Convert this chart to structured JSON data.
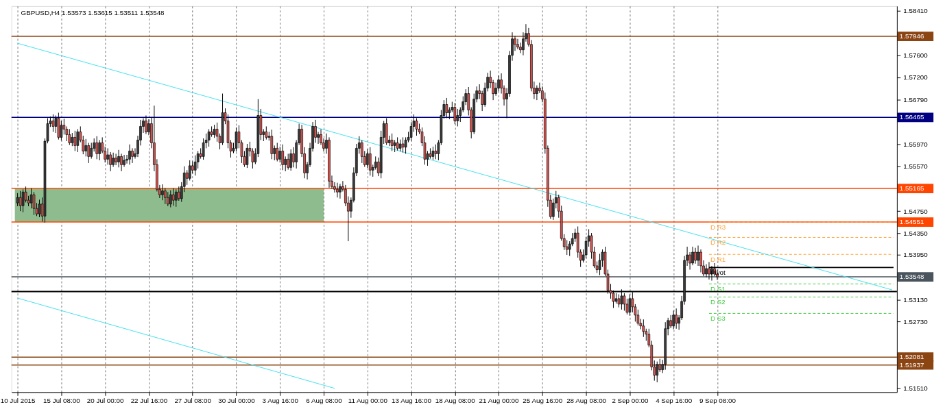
{
  "chart_data": {
    "type": "candlestick",
    "title": "GBPUSD,H4 1.53573 1.53615 1.53511 1.53548",
    "categories": [
      "10 Jul 2015",
      null,
      null,
      null,
      null,
      null,
      null,
      null,
      null,
      null,
      null,
      null,
      null,
      null,
      null,
      null,
      "15 Jul 08:00",
      null,
      null,
      null,
      null,
      null,
      null,
      null,
      null,
      null,
      null,
      null,
      null,
      null,
      null,
      null,
      "20 Jul 00:00",
      null,
      null,
      null,
      null,
      null,
      null,
      null,
      null,
      null,
      null,
      null,
      null,
      null,
      null,
      null,
      "22 Jul 16:00",
      null,
      null,
      null,
      null,
      null,
      null,
      null,
      null,
      null,
      null,
      null,
      null,
      null,
      null,
      null,
      "27 Jul 08:00",
      null,
      null,
      null,
      null,
      null,
      null,
      null,
      null,
      null,
      null,
      null,
      null,
      null,
      null,
      null,
      "30 Jul 00:00",
      null,
      null,
      null,
      null,
      null,
      null,
      null,
      null,
      null,
      null,
      null,
      null,
      null,
      null,
      null,
      "3 Aug 16:00",
      null,
      null,
      null,
      null,
      null,
      null,
      null,
      null,
      null,
      null,
      null,
      null,
      null,
      null,
      null,
      "6 Aug 08:00",
      null,
      null,
      null,
      null,
      null,
      null,
      null,
      null,
      null,
      null,
      null,
      null,
      null,
      null,
      null,
      "11 Aug 00:00",
      null,
      null,
      null,
      null,
      null,
      null,
      null,
      null,
      null,
      null,
      null,
      null,
      null,
      null,
      null,
      "13 Aug 16:00",
      null,
      null,
      null,
      null,
      null,
      null,
      null,
      null,
      null,
      null,
      null,
      null,
      null,
      null,
      null,
      "18 Aug 08:00",
      null,
      null,
      null,
      null,
      null,
      null,
      null,
      null,
      null,
      null,
      null,
      null,
      null,
      null,
      null,
      "21 Aug 00:00",
      null,
      null,
      null,
      null,
      null,
      null,
      null,
      null,
      null,
      null,
      null,
      null,
      null,
      null,
      null,
      "25 Aug 16:00",
      null,
      null,
      null,
      null,
      null,
      null,
      null,
      null,
      null,
      null,
      null,
      null,
      null,
      null,
      null,
      "28 Aug 08:00",
      null,
      null,
      null,
      null,
      null,
      null,
      null,
      null,
      null,
      null,
      null,
      null,
      null,
      null,
      null,
      "2 Sep 00:00",
      null,
      null,
      null,
      null,
      null,
      null,
      null,
      null,
      null,
      null,
      null,
      null,
      null,
      null,
      null,
      "4 Sep 16:00",
      null,
      null,
      null,
      null,
      null,
      null,
      null,
      null,
      null,
      null,
      null,
      null,
      null,
      null,
      null,
      "9 Sep 08:00",
      null,
      null,
      null,
      null,
      null,
      null,
      null,
      null,
      null,
      null,
      null,
      null,
      null,
      null,
      null,
      null,
      null,
      null,
      null,
      null,
      null,
      null,
      null,
      null,
      null,
      null,
      null,
      null,
      null,
      null,
      null,
      null,
      null,
      null,
      null,
      null,
      null,
      null,
      null,
      null,
      null,
      null,
      null,
      null,
      null,
      null,
      null,
      null,
      null,
      null,
      null,
      null,
      null,
      null,
      null,
      null,
      null,
      null,
      null,
      null,
      null,
      null,
      null,
      null
    ],
    "ohlc": [
      [
        1.549,
        1.5508,
        1.5484,
        1.55
      ],
      [
        1.55,
        1.5512,
        1.5475,
        1.5485
      ],
      [
        1.5485,
        1.5515,
        1.5473,
        1.551
      ],
      [
        1.551,
        1.552,
        1.5491,
        1.5495
      ],
      [
        1.5495,
        1.5503,
        1.5484,
        1.549
      ],
      [
        1.549,
        1.5517,
        1.548,
        1.5505
      ],
      [
        1.5505,
        1.551,
        1.5468,
        1.548
      ],
      [
        1.548,
        1.549,
        1.5466,
        1.547
      ],
      [
        1.547,
        1.5496,
        1.5464,
        1.5488
      ],
      [
        1.5488,
        1.55,
        1.5456,
        1.5466
      ],
      [
        1.5466,
        1.5608,
        1.5454,
        1.5603
      ],
      [
        1.5603,
        1.5645,
        1.5599,
        1.5635
      ],
      [
        1.5635,
        1.5648,
        1.5629,
        1.564
      ],
      [
        1.564,
        1.5652,
        1.562,
        1.563
      ],
      [
        1.563,
        1.565,
        1.5618,
        1.5645
      ],
      [
        1.5645,
        1.5655,
        1.5606,
        1.561
      ],
      [
        1.561,
        1.564,
        1.5604,
        1.5632
      ],
      [
        1.5632,
        1.5644,
        1.5615,
        1.5625
      ],
      [
        1.5625,
        1.563,
        1.5603,
        1.5615
      ],
      [
        1.5615,
        1.5625,
        1.5596,
        1.56
      ],
      [
        1.56,
        1.5618,
        1.5594,
        1.561
      ],
      [
        1.561,
        1.5622,
        1.5585,
        1.5595
      ],
      [
        1.5595,
        1.5625,
        1.5583,
        1.562
      ],
      [
        1.562,
        1.563,
        1.5601,
        1.5605
      ],
      [
        1.5605,
        1.5613,
        1.5579,
        1.5585
      ],
      [
        1.5585,
        1.5607,
        1.5575,
        1.5595
      ],
      [
        1.5595,
        1.56,
        1.5563,
        1.5575
      ],
      [
        1.5575,
        1.56,
        1.5571,
        1.559
      ],
      [
        1.559,
        1.5608,
        1.5584,
        1.56
      ],
      [
        1.56,
        1.5612,
        1.557,
        1.558
      ],
      [
        1.558,
        1.5605,
        1.5568,
        1.56
      ],
      [
        1.56,
        1.561,
        1.5581,
        1.5585
      ],
      [
        1.5585,
        1.5593,
        1.5564,
        1.557
      ],
      [
        1.557,
        1.559,
        1.556,
        1.5578
      ],
      [
        1.5578,
        1.5583,
        1.5548,
        1.556
      ],
      [
        1.556,
        1.5582,
        1.5556,
        1.5572
      ],
      [
        1.5572,
        1.558,
        1.5559,
        1.5565
      ],
      [
        1.5565,
        1.5587,
        1.5555,
        1.5575
      ],
      [
        1.5575,
        1.558,
        1.5548,
        1.556
      ],
      [
        1.556,
        1.5578,
        1.5556,
        1.5568
      ],
      [
        1.5568,
        1.5578,
        1.5562,
        1.557
      ],
      [
        1.557,
        1.5597,
        1.556,
        1.5585
      ],
      [
        1.5585,
        1.559,
        1.5563,
        1.5575
      ],
      [
        1.5575,
        1.559,
        1.5571,
        1.558
      ],
      [
        1.558,
        1.5613,
        1.5574,
        1.5605
      ],
      [
        1.5605,
        1.5642,
        1.5595,
        1.563
      ],
      [
        1.563,
        1.5645,
        1.5618,
        1.564
      ],
      [
        1.564,
        1.565,
        1.5616,
        1.562
      ],
      [
        1.562,
        1.5643,
        1.5614,
        1.5635
      ],
      [
        1.5635,
        1.5647,
        1.559,
        1.56
      ],
      [
        1.56,
        1.5668,
        1.5548,
        1.556
      ],
      [
        1.556,
        1.557,
        1.5511,
        1.5515
      ],
      [
        1.5515,
        1.5523,
        1.5499,
        1.5505
      ],
      [
        1.5505,
        1.5524,
        1.5495,
        1.5512
      ],
      [
        1.5512,
        1.5517,
        1.5488,
        1.55
      ],
      [
        1.55,
        1.551,
        1.5484,
        1.5488
      ],
      [
        1.5488,
        1.5513,
        1.5482,
        1.5505
      ],
      [
        1.5505,
        1.5517,
        1.5485,
        1.5495
      ],
      [
        1.5495,
        1.5515,
        1.5483,
        1.551
      ],
      [
        1.551,
        1.552,
        1.5494,
        1.5498
      ],
      [
        1.5498,
        1.5528,
        1.5492,
        1.552
      ],
      [
        1.552,
        1.5557,
        1.551,
        1.5545
      ],
      [
        1.5545,
        1.555,
        1.5523,
        1.5535
      ],
      [
        1.5535,
        1.5568,
        1.5531,
        1.5558
      ],
      [
        1.5558,
        1.5566,
        1.5544,
        1.555
      ],
      [
        1.555,
        1.5577,
        1.554,
        1.5565
      ],
      [
        1.5565,
        1.5585,
        1.5553,
        1.558
      ],
      [
        1.558,
        1.559,
        1.5571,
        1.5575
      ],
      [
        1.5575,
        1.5608,
        1.5569,
        1.56
      ],
      [
        1.56,
        1.5617,
        1.559,
        1.5605
      ],
      [
        1.5605,
        1.5625,
        1.5593,
        1.562
      ],
      [
        1.562,
        1.563,
        1.5611,
        1.5615
      ],
      [
        1.5615,
        1.5633,
        1.5609,
        1.5625
      ],
      [
        1.5625,
        1.5637,
        1.5602,
        1.5612
      ],
      [
        1.5612,
        1.5617,
        1.5588,
        1.56
      ],
      [
        1.56,
        1.569,
        1.5596,
        1.5655
      ],
      [
        1.5655,
        1.5663,
        1.5634,
        1.564
      ],
      [
        1.564,
        1.5652,
        1.559,
        1.56
      ],
      [
        1.56,
        1.5605,
        1.5573,
        1.5585
      ],
      [
        1.5585,
        1.56,
        1.5581,
        1.559
      ],
      [
        1.559,
        1.5628,
        1.5584,
        1.562
      ],
      [
        1.562,
        1.5632,
        1.559,
        1.56
      ],
      [
        1.56,
        1.5605,
        1.5563,
        1.5575
      ],
      [
        1.5575,
        1.5585,
        1.5556,
        1.556
      ],
      [
        1.556,
        1.5598,
        1.5554,
        1.559
      ],
      [
        1.559,
        1.5602,
        1.5575,
        1.5585
      ],
      [
        1.5585,
        1.559,
        1.5553,
        1.5565
      ],
      [
        1.5565,
        1.559,
        1.5561,
        1.558
      ],
      [
        1.558,
        1.568,
        1.5574,
        1.565
      ],
      [
        1.565,
        1.5662,
        1.5605,
        1.5615
      ],
      [
        1.5615,
        1.5625,
        1.5603,
        1.562
      ],
      [
        1.562,
        1.563,
        1.5606,
        1.561
      ],
      [
        1.561,
        1.562,
        1.5604,
        1.5612
      ],
      [
        1.5612,
        1.5624,
        1.557,
        1.558
      ],
      [
        1.558,
        1.5595,
        1.5568,
        1.559
      ],
      [
        1.559,
        1.56,
        1.5566,
        1.557
      ],
      [
        1.557,
        1.5593,
        1.5564,
        1.5585
      ],
      [
        1.5585,
        1.5597,
        1.555,
        1.556
      ],
      [
        1.556,
        1.5575,
        1.5548,
        1.557
      ],
      [
        1.557,
        1.558,
        1.5551,
        1.5555
      ],
      [
        1.5555,
        1.5588,
        1.5549,
        1.558
      ],
      [
        1.558,
        1.5592,
        1.5555,
        1.5565
      ],
      [
        1.5565,
        1.5605,
        1.5553,
        1.56
      ],
      [
        1.56,
        1.5635,
        1.5596,
        1.5625
      ],
      [
        1.5625,
        1.5633,
        1.5574,
        1.558
      ],
      [
        1.558,
        1.5592,
        1.5535,
        1.5545
      ],
      [
        1.5545,
        1.5565,
        1.5533,
        1.556
      ],
      [
        1.556,
        1.56,
        1.5556,
        1.559
      ],
      [
        1.559,
        1.5638,
        1.5584,
        1.563
      ],
      [
        1.563,
        1.5642,
        1.56,
        1.561
      ],
      [
        1.561,
        1.562,
        1.5598,
        1.5615
      ],
      [
        1.5615,
        1.5625,
        1.5596,
        1.56
      ],
      [
        1.56,
        1.5608,
        1.5584,
        1.559
      ],
      [
        1.559,
        1.5617,
        1.558,
        1.5605
      ],
      [
        1.5605,
        1.561,
        1.5518,
        1.553
      ],
      [
        1.553,
        1.554,
        1.5516,
        1.552
      ],
      [
        1.552,
        1.5528,
        1.5509,
        1.5515
      ],
      [
        1.5515,
        1.5527,
        1.55,
        1.551
      ],
      [
        1.551,
        1.5525,
        1.5498,
        1.552
      ],
      [
        1.552,
        1.553,
        1.5511,
        1.5515
      ],
      [
        1.5515,
        1.5523,
        1.5484,
        1.549
      ],
      [
        1.549,
        1.5502,
        1.542,
        1.5475
      ],
      [
        1.5475,
        1.55,
        1.5463,
        1.5495
      ],
      [
        1.5495,
        1.5555,
        1.5491,
        1.5545
      ],
      [
        1.5545,
        1.5598,
        1.5539,
        1.559
      ],
      [
        1.559,
        1.5612,
        1.558,
        1.56
      ],
      [
        1.56,
        1.5605,
        1.5563,
        1.5575
      ],
      [
        1.5575,
        1.5585,
        1.5556,
        1.556
      ],
      [
        1.556,
        1.5588,
        1.5554,
        1.558
      ],
      [
        1.558,
        1.5592,
        1.554,
        1.555
      ],
      [
        1.555,
        1.556,
        1.5538,
        1.5555
      ],
      [
        1.5555,
        1.5575,
        1.5551,
        1.5565
      ],
      [
        1.5565,
        1.5573,
        1.5539,
        1.5545
      ],
      [
        1.5545,
        1.5622,
        1.5535,
        1.561
      ],
      [
        1.561,
        1.564,
        1.5598,
        1.5635
      ],
      [
        1.5635,
        1.5645,
        1.5596,
        1.56
      ],
      [
        1.56,
        1.5613,
        1.5594,
        1.5605
      ],
      [
        1.5605,
        1.5617,
        1.5585,
        1.5595
      ],
      [
        1.5595,
        1.5605,
        1.5583,
        1.56
      ],
      [
        1.56,
        1.561,
        1.5586,
        1.559
      ],
      [
        1.559,
        1.5606,
        1.5584,
        1.5598
      ],
      [
        1.5598,
        1.561,
        1.5582,
        1.5592
      ],
      [
        1.5592,
        1.561,
        1.558,
        1.5605
      ],
      [
        1.5605,
        1.562,
        1.5601,
        1.561
      ],
      [
        1.561,
        1.5638,
        1.5604,
        1.563
      ],
      [
        1.563,
        1.5652,
        1.562,
        1.564
      ],
      [
        1.564,
        1.5645,
        1.5613,
        1.5625
      ],
      [
        1.5625,
        1.5635,
        1.5616,
        1.562
      ],
      [
        1.562,
        1.5628,
        1.5594,
        1.56
      ],
      [
        1.56,
        1.5612,
        1.556,
        1.557
      ],
      [
        1.557,
        1.5585,
        1.5558,
        1.558
      ],
      [
        1.558,
        1.559,
        1.5571,
        1.5575
      ],
      [
        1.5575,
        1.5593,
        1.5569,
        1.5585
      ],
      [
        1.5585,
        1.5597,
        1.557,
        1.558
      ],
      [
        1.558,
        1.5605,
        1.5568,
        1.56
      ],
      [
        1.56,
        1.566,
        1.5596,
        1.565
      ],
      [
        1.565,
        1.5678,
        1.5644,
        1.567
      ],
      [
        1.567,
        1.5682,
        1.5645,
        1.5655
      ],
      [
        1.5655,
        1.5665,
        1.5643,
        1.566
      ],
      [
        1.566,
        1.5675,
        1.5656,
        1.5665
      ],
      [
        1.5665,
        1.5673,
        1.5634,
        1.564
      ],
      [
        1.564,
        1.5662,
        1.563,
        1.565
      ],
      [
        1.565,
        1.5665,
        1.5638,
        1.566
      ],
      [
        1.566,
        1.5685,
        1.5656,
        1.5675
      ],
      [
        1.5675,
        1.5698,
        1.5669,
        1.569
      ],
      [
        1.569,
        1.5702,
        1.565,
        1.566
      ],
      [
        1.566,
        1.5665,
        1.5608,
        1.562
      ],
      [
        1.562,
        1.569,
        1.5616,
        1.568
      ],
      [
        1.568,
        1.5703,
        1.5674,
        1.5695
      ],
      [
        1.5695,
        1.5707,
        1.568,
        1.569
      ],
      [
        1.569,
        1.5695,
        1.5658,
        1.567
      ],
      [
        1.567,
        1.571,
        1.5666,
        1.57
      ],
      [
        1.57,
        1.5728,
        1.5694,
        1.572
      ],
      [
        1.572,
        1.5732,
        1.57,
        1.571
      ],
      [
        1.571,
        1.5715,
        1.5678,
        1.569
      ],
      [
        1.569,
        1.571,
        1.5686,
        1.57
      ],
      [
        1.57,
        1.5723,
        1.5694,
        1.5715
      ],
      [
        1.5715,
        1.5727,
        1.569,
        1.57
      ],
      [
        1.57,
        1.5705,
        1.5668,
        1.568
      ],
      [
        1.568,
        1.57,
        1.5645,
        1.569
      ],
      [
        1.569,
        1.5768,
        1.5684,
        1.576
      ],
      [
        1.576,
        1.5802,
        1.575,
        1.579
      ],
      [
        1.579,
        1.5795,
        1.5768,
        1.578
      ],
      [
        1.578,
        1.579,
        1.5771,
        1.5775
      ],
      [
        1.5775,
        1.5783,
        1.5764,
        1.577
      ],
      [
        1.577,
        1.5802,
        1.576,
        1.579
      ],
      [
        1.579,
        1.5817,
        1.5785,
        1.58
      ],
      [
        1.58,
        1.581,
        1.5776,
        1.578
      ],
      [
        1.578,
        1.5788,
        1.5694,
        1.57
      ],
      [
        1.57,
        1.5712,
        1.568,
        1.569
      ],
      [
        1.569,
        1.5705,
        1.5678,
        1.57
      ],
      [
        1.57,
        1.571,
        1.5691,
        1.5695
      ],
      [
        1.5695,
        1.5703,
        1.5674,
        1.568
      ],
      [
        1.568,
        1.5692,
        1.558,
        1.559
      ],
      [
        1.559,
        1.5595,
        1.5483,
        1.5495
      ],
      [
        1.5495,
        1.5505,
        1.5461,
        1.5465
      ],
      [
        1.5465,
        1.5498,
        1.5459,
        1.549
      ],
      [
        1.549,
        1.5512,
        1.548,
        1.55
      ],
      [
        1.55,
        1.5505,
        1.5463,
        1.5475
      ],
      [
        1.5475,
        1.5485,
        1.5421,
        1.5425
      ],
      [
        1.5425,
        1.5433,
        1.5404,
        1.541
      ],
      [
        1.541,
        1.5422,
        1.5395,
        1.5405
      ],
      [
        1.5405,
        1.542,
        1.5393,
        1.5415
      ],
      [
        1.5415,
        1.5435,
        1.5411,
        1.5425
      ],
      [
        1.5425,
        1.5443,
        1.5419,
        1.5435
      ],
      [
        1.5435,
        1.5447,
        1.539,
        1.54
      ],
      [
        1.54,
        1.5405,
        1.5373,
        1.5385
      ],
      [
        1.5385,
        1.5405,
        1.5381,
        1.5395
      ],
      [
        1.5395,
        1.5428,
        1.5389,
        1.542
      ],
      [
        1.542,
        1.5442,
        1.541,
        1.543
      ],
      [
        1.543,
        1.5435,
        1.5388,
        1.54
      ],
      [
        1.54,
        1.541,
        1.5371,
        1.5375
      ],
      [
        1.5375,
        1.5383,
        1.5362,
        1.5368
      ],
      [
        1.5368,
        1.5397,
        1.5358,
        1.5385
      ],
      [
        1.5385,
        1.5405,
        1.5373,
        1.54
      ],
      [
        1.54,
        1.541,
        1.5356,
        1.536
      ],
      [
        1.536,
        1.5368,
        1.5324,
        1.533
      ],
      [
        1.533,
        1.5342,
        1.5315,
        1.5325
      ],
      [
        1.5325,
        1.533,
        1.5298,
        1.531
      ],
      [
        1.531,
        1.5325,
        1.5306,
        1.5315
      ],
      [
        1.5315,
        1.5323,
        1.5299,
        1.5305
      ],
      [
        1.5305,
        1.5332,
        1.5295,
        1.532
      ],
      [
        1.532,
        1.5325,
        1.5293,
        1.5305
      ],
      [
        1.5305,
        1.5315,
        1.5286,
        1.529
      ],
      [
        1.529,
        1.5323,
        1.5284,
        1.5315
      ],
      [
        1.5315,
        1.5327,
        1.529,
        1.53
      ],
      [
        1.53,
        1.5305,
        1.5273,
        1.5285
      ],
      [
        1.5285,
        1.5295,
        1.5266,
        1.527
      ],
      [
        1.527,
        1.5278,
        1.5259,
        1.5265
      ],
      [
        1.5265,
        1.5277,
        1.5245,
        1.5255
      ],
      [
        1.5255,
        1.526,
        1.5238,
        1.525
      ],
      [
        1.525,
        1.526,
        1.5226,
        1.523
      ],
      [
        1.523,
        1.5238,
        1.5184,
        1.519
      ],
      [
        1.519,
        1.5202,
        1.5165,
        1.5175
      ],
      [
        1.5175,
        1.52,
        1.5162,
        1.5195
      ],
      [
        1.5195,
        1.5205,
        1.5181,
        1.5185
      ],
      [
        1.5185,
        1.5203,
        1.5179,
        1.5195
      ],
      [
        1.5195,
        1.5272,
        1.5185,
        1.526
      ],
      [
        1.526,
        1.528,
        1.5248,
        1.5275
      ],
      [
        1.5275,
        1.5285,
        1.5261,
        1.5265
      ],
      [
        1.5265,
        1.5293,
        1.5259,
        1.5285
      ],
      [
        1.5285,
        1.5297,
        1.526,
        1.527
      ],
      [
        1.527,
        1.5285,
        1.5258,
        1.528
      ],
      [
        1.528,
        1.532,
        1.5276,
        1.531
      ],
      [
        1.531,
        1.5393,
        1.5304,
        1.5385
      ],
      [
        1.5385,
        1.541,
        1.5375,
        1.5395
      ],
      [
        1.5395,
        1.54,
        1.5368,
        1.538
      ],
      [
        1.538,
        1.541,
        1.5376,
        1.54
      ],
      [
        1.54,
        1.5408,
        1.5379,
        1.5385
      ],
      [
        1.5385,
        1.5412,
        1.5375,
        1.54
      ],
      [
        1.54,
        1.5405,
        1.5363,
        1.5375
      ],
      [
        1.5375,
        1.5385,
        1.5356,
        1.536
      ],
      [
        1.536,
        1.5378,
        1.5354,
        1.537
      ],
      [
        1.537,
        1.5382,
        1.535,
        1.536
      ],
      [
        1.536,
        1.5375,
        1.5348,
        1.537
      ],
      [
        1.537,
        1.538,
        1.5356,
        1.536
      ],
      [
        1.536,
        1.5368,
        1.5349,
        1.5355
      ],
      null,
      null,
      null,
      null,
      null,
      null,
      null,
      null,
      null,
      null,
      null,
      null,
      null,
      null,
      null,
      null,
      null,
      null,
      null,
      null,
      null,
      null,
      null,
      null,
      null,
      null,
      null,
      null,
      null,
      null,
      null,
      null,
      null,
      null,
      null,
      null,
      null,
      null,
      null,
      null,
      null,
      null,
      null,
      null,
      null,
      null,
      null,
      null,
      null,
      null,
      null,
      null,
      null,
      null,
      null,
      null,
      null,
      null,
      null,
      null,
      null,
      null,
      null,
      null
    ],
    "series": [
      {
        "type": "line",
        "color": "#40e0f0",
        "values": [
          1.5782,
          null,
          null,
          null,
          null,
          null,
          null,
          null,
          null,
          null,
          null,
          null,
          null,
          null,
          null,
          null,
          null,
          null,
          null,
          null,
          null,
          null,
          null,
          null,
          null,
          null,
          null,
          null,
          null,
          null,
          null,
          null,
          null,
          null,
          null,
          null,
          null,
          null,
          null,
          null,
          null,
          null,
          null,
          null,
          null,
          null,
          null,
          null,
          null,
          null,
          null,
          null,
          null,
          null,
          null,
          null,
          null,
          null,
          null,
          null,
          null,
          null,
          null,
          null,
          null,
          null,
          null,
          null,
          null,
          null,
          null,
          null,
          null,
          null,
          null,
          null,
          null,
          null,
          null,
          null,
          null,
          null,
          null,
          null,
          null,
          null,
          null,
          null,
          null,
          null,
          null,
          null,
          null,
          null,
          null,
          null,
          null,
          null,
          null,
          null,
          null,
          null,
          null,
          null,
          null,
          null,
          null,
          null,
          null,
          null,
          null,
          null,
          null,
          null,
          null,
          null,
          null,
          null,
          null,
          null,
          null,
          null,
          null,
          null,
          null,
          null,
          null,
          null,
          null,
          null,
          null,
          null,
          null,
          null,
          null,
          null,
          null,
          null,
          null,
          null,
          null,
          null,
          null,
          null,
          null,
          null,
          null,
          null,
          null,
          null,
          null,
          null,
          null,
          null,
          null,
          null,
          null,
          null,
          null,
          null,
          null,
          null,
          null,
          null,
          null,
          null,
          null,
          null,
          null,
          null,
          null,
          null,
          null,
          null,
          null,
          null,
          null,
          null,
          null,
          null,
          null,
          null,
          null,
          null,
          null,
          null,
          null,
          null,
          null,
          null,
          null,
          null,
          null,
          null,
          null,
          null,
          null,
          null,
          null,
          null,
          null,
          null,
          null,
          null,
          null,
          null,
          null,
          null,
          null,
          null,
          null,
          null,
          null,
          null,
          null,
          null,
          null,
          null,
          null,
          null,
          null,
          null,
          null,
          null,
          null,
          null,
          null,
          null,
          null,
          null,
          null,
          null,
          null,
          null,
          null,
          null,
          null,
          null,
          null,
          null,
          null,
          null,
          null,
          null,
          null,
          null,
          null,
          null,
          null,
          null,
          null,
          null,
          null,
          null,
          null,
          null,
          null,
          null,
          null,
          null,
          null,
          null,
          null,
          null,
          null,
          null,
          null,
          null,
          null,
          null,
          null,
          null,
          null,
          null,
          null,
          null,
          null,
          null,
          null,
          null,
          null,
          null,
          null,
          null,
          null,
          null,
          null,
          null,
          null,
          null,
          null,
          null,
          null,
          null,
          null,
          null,
          null,
          null,
          null,
          null,
          null,
          null,
          null,
          null,
          null,
          null,
          null,
          null,
          null,
          null,
          null,
          null,
          null,
          null,
          null,
          null,
          null,
          null,
          null,
          null,
          1.5331
        ]
      },
      {
        "type": "line",
        "color": "#40e0f0",
        "values": [
          1.5316,
          null,
          null,
          null,
          null,
          null,
          null,
          null,
          null,
          null,
          null,
          null,
          null,
          null,
          null,
          null,
          null,
          null,
          null,
          null,
          null,
          null,
          null,
          null,
          null,
          null,
          null,
          null,
          null,
          null,
          null,
          null,
          null,
          null,
          null,
          null,
          null,
          null,
          null,
          null,
          null,
          null,
          null,
          null,
          null,
          null,
          null,
          null,
          null,
          null,
          null,
          null,
          null,
          null,
          null,
          null,
          null,
          null,
          null,
          null,
          null,
          null,
          null,
          null,
          null,
          null,
          null,
          null,
          null,
          null,
          null,
          null,
          null,
          null,
          null,
          null,
          null,
          null,
          null,
          null,
          null,
          null,
          null,
          null,
          null,
          null,
          null,
          null,
          null,
          null,
          null,
          null,
          null,
          null,
          null,
          null,
          null,
          null,
          null,
          null,
          null,
          null,
          null,
          null,
          null,
          null,
          null,
          null,
          null,
          null,
          null,
          null,
          null,
          null,
          null,
          null,
          1.5151,
          null,
          null,
          null,
          null,
          null,
          null,
          null,
          null,
          null,
          null,
          null,
          null,
          null,
          null,
          null,
          null,
          null,
          null,
          null,
          null,
          null,
          null,
          null,
          null,
          null,
          null,
          null,
          null,
          null,
          null,
          null,
          null,
          null,
          null,
          null,
          null,
          null,
          null,
          null,
          null,
          null,
          null,
          null,
          null,
          null,
          null,
          null,
          null,
          null,
          null,
          null,
          null,
          null,
          null,
          null,
          null,
          null,
          null,
          null,
          null,
          null,
          null,
          null,
          null,
          null,
          null,
          null,
          null,
          null,
          null,
          null,
          null,
          null,
          null,
          null,
          null,
          null,
          null,
          null,
          null,
          null,
          null,
          null,
          null,
          null,
          null,
          null,
          null,
          null,
          null,
          null,
          null,
          null,
          null,
          null,
          null,
          null,
          null,
          null,
          null,
          null,
          null,
          null,
          null,
          null,
          null,
          null,
          null,
          null,
          null,
          null,
          null,
          null,
          null,
          null,
          null,
          null,
          null,
          null,
          null,
          null,
          null,
          null,
          null,
          null,
          null,
          null,
          null,
          null,
          null,
          null,
          null,
          null,
          null,
          null,
          null,
          null,
          null,
          null,
          null,
          null,
          null,
          null,
          null,
          null,
          null,
          null,
          null,
          null,
          null,
          null,
          null,
          null,
          null,
          null,
          null,
          null,
          null,
          null,
          null,
          null,
          null,
          null,
          null,
          null,
          null,
          null,
          null,
          null,
          null,
          null,
          null,
          null,
          null,
          null,
          null,
          null,
          null,
          null,
          null,
          null,
          null,
          null,
          null,
          null,
          null,
          null,
          null,
          null,
          null,
          null,
          null,
          null,
          null,
          null,
          null,
          null,
          null,
          null,
          null,
          null,
          null,
          null,
          null
        ]
      }
    ],
    "ylim": [
      1.5144,
      1.585
    ],
    "yticks": [
      {
        "value": 1.5151,
        "label": "1.51510"
      },
      {
        "value": 1.5273,
        "label": "1.52730"
      },
      {
        "value": 1.5313,
        "label": "1.53130"
      },
      {
        "value": 1.5395,
        "label": "1.53950"
      },
      {
        "value": 1.5435,
        "label": "1.54350"
      },
      {
        "value": 1.5475,
        "label": "1.54750"
      },
      {
        "value": 1.5557,
        "label": "1.55570"
      },
      {
        "value": 1.5597,
        "label": "1.55970"
      },
      {
        "value": 1.5679,
        "label": "1.56790"
      },
      {
        "value": 1.572,
        "label": "1.57200"
      },
      {
        "value": 1.576,
        "label": "1.57600"
      },
      {
        "value": 1.5841,
        "label": "1.58410"
      }
    ],
    "bands": [
      {
        "axis": "y",
        "from": 1.54551,
        "to": 1.55165,
        "color": "#8fbc8f"
      }
    ],
    "ref_lines": [
      {
        "axis": "y",
        "value": 1.57946,
        "label": "1.57946",
        "color": "#8b4513"
      },
      {
        "axis": "y",
        "value": 1.56465,
        "label": "1.56465",
        "color": "#000080"
      },
      {
        "axis": "y",
        "value": 1.55165,
        "label": "1.55165",
        "color": "#ff4500"
      },
      {
        "axis": "y",
        "value": 1.54551,
        "label": "1.54551",
        "color": "#ff4500"
      },
      {
        "axis": "y",
        "value": 1.53548,
        "label": "1.53548",
        "color": "#4a545c"
      },
      {
        "axis": "y",
        "value": 1.5328,
        "label": null,
        "color": "#000000"
      },
      {
        "axis": "y",
        "value": 1.52081,
        "label": "1.52081",
        "color": "#8b4513"
      },
      {
        "axis": "y",
        "value": 1.51937,
        "label": "1.51937",
        "color": "#8b4513"
      },
      {
        "axis": "y",
        "value": 1.5455,
        "label": "D R3",
        "color": "#ffa033",
        "line_style": "dashed"
      },
      {
        "axis": "y",
        "value": 1.5427,
        "label": "D R2",
        "color": "#ffa033",
        "line_style": "dashed"
      },
      {
        "axis": "y",
        "value": 1.5396,
        "label": "D R1",
        "color": "#ffa033",
        "line_style": "dashed"
      },
      {
        "axis": "y",
        "value": 1.5372,
        "label": "Pivot",
        "color": "#000000",
        "line_style": "solid"
      },
      {
        "axis": "y",
        "value": 1.5342,
        "label": "D S1",
        "color": "#44cc44",
        "line_style": "dashed"
      },
      {
        "axis": "y",
        "value": 1.5318,
        "label": "D S2",
        "color": "#44cc44",
        "line_style": "dashed"
      },
      {
        "axis": "y",
        "value": 1.5288,
        "label": "D S3",
        "color": "#44cc44",
        "line_style": "dashed"
      }
    ],
    "grid": "x"
  }
}
